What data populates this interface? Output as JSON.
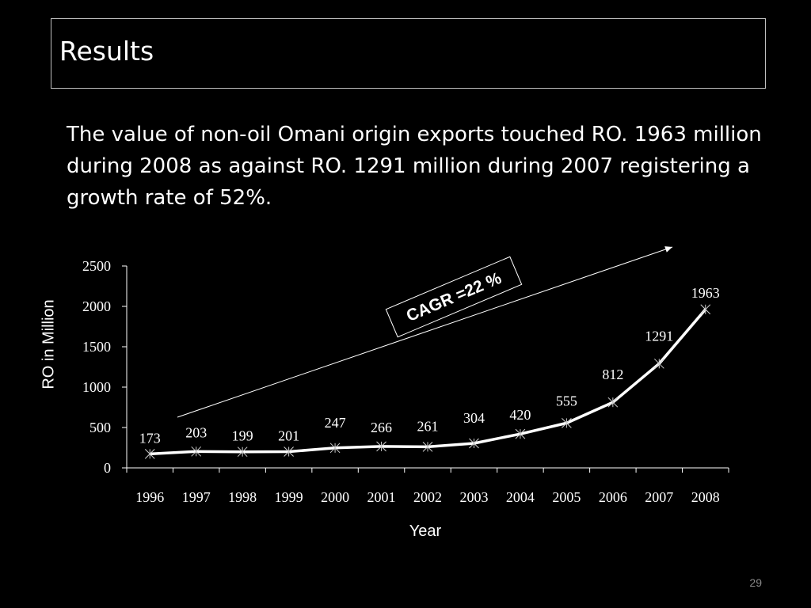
{
  "slide": {
    "title": "Results",
    "body": "The value of non-oil Omani origin exports touched RO. 1963 million during 2008 as against RO. 1291 million during 2007 registering a growth rate of 52%.",
    "page_number": "29"
  },
  "chart_data": {
    "type": "line",
    "categories": [
      "1996",
      "1997",
      "1998",
      "1999",
      "2000",
      "2001",
      "2002",
      "2003",
      "2004",
      "2005",
      "2006",
      "2007",
      "2008"
    ],
    "series": [
      {
        "values": [
          173,
          203,
          199,
          201,
          247,
          266,
          261,
          304,
          420,
          555,
          812,
          1291,
          1963
        ]
      }
    ],
    "xlabel": "Year",
    "ylabel": "RO in Million",
    "ylim": [
      0,
      2500
    ],
    "yticks": [
      0,
      500,
      1000,
      1500,
      2000,
      2500
    ],
    "grid": false,
    "annotation": "CAGR =22 %",
    "colors": {
      "line": "#ffffff",
      "background": "#000000",
      "text": "#ffffff"
    }
  }
}
